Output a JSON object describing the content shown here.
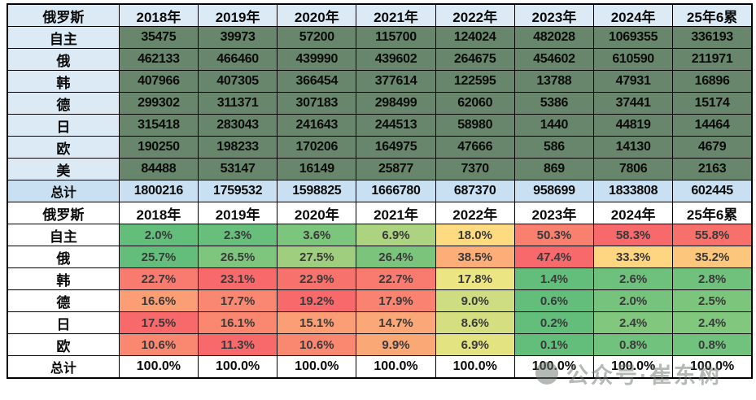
{
  "chart_data": [
    {
      "type": "table",
      "name": "russia-auto-market-sales-volume",
      "corner_label": "俄罗斯",
      "columns": [
        "2018年",
        "2019年",
        "2020年",
        "2021年",
        "2022年",
        "2023年",
        "2024年",
        "25年6累"
      ],
      "rows": [
        {
          "label": "自主",
          "values": [
            35475,
            39973,
            57200,
            115700,
            124024,
            482028,
            1069355,
            336193
          ]
        },
        {
          "label": "俄",
          "values": [
            462133,
            466460,
            439990,
            439602,
            264675,
            454602,
            610590,
            211971
          ]
        },
        {
          "label": "韩",
          "values": [
            407966,
            407305,
            366454,
            377614,
            122595,
            13788,
            47931,
            16896
          ]
        },
        {
          "label": "德",
          "values": [
            299302,
            311371,
            307183,
            298499,
            62060,
            5386,
            37441,
            15174
          ]
        },
        {
          "label": "日",
          "values": [
            315418,
            283043,
            241643,
            244513,
            58980,
            1440,
            44819,
            14464
          ]
        },
        {
          "label": "欧",
          "values": [
            190250,
            198233,
            170206,
            164975,
            47666,
            586,
            14130,
            4679
          ]
        },
        {
          "label": "美",
          "values": [
            84488,
            53147,
            16149,
            25877,
            7370,
            869,
            7806,
            2163
          ]
        }
      ],
      "total_row": {
        "label": "总计",
        "values": [
          1800216,
          1759532,
          1598825,
          1666780,
          687370,
          958699,
          1833808,
          602445
        ]
      }
    },
    {
      "type": "table",
      "name": "russia-auto-market-share-heatmap",
      "corner_label": "俄罗斯",
      "columns": [
        "2018年",
        "2019年",
        "2020年",
        "2021年",
        "2022年",
        "2023年",
        "2024年",
        "25年6累"
      ],
      "rows": [
        {
          "label": "自主",
          "cells": [
            {
              "v": "2.0%",
              "bg": "#63BE7B"
            },
            {
              "v": "2.3%",
              "bg": "#67BF7B"
            },
            {
              "v": "3.6%",
              "bg": "#7BC57C"
            },
            {
              "v": "6.9%",
              "bg": "#ACD37F"
            },
            {
              "v": "18.0%",
              "bg": "#FEDB81"
            },
            {
              "v": "50.3%",
              "bg": "#F9806F"
            },
            {
              "v": "58.3%",
              "bg": "#F8696B"
            },
            {
              "v": "55.8%",
              "bg": "#F8706C"
            }
          ]
        },
        {
          "label": "俄",
          "cells": [
            {
              "v": "25.7%",
              "bg": "#63BE7B"
            },
            {
              "v": "26.5%",
              "bg": "#7EC67D"
            },
            {
              "v": "27.5%",
              "bg": "#9FCF7E"
            },
            {
              "v": "26.4%",
              "bg": "#7AC47C"
            },
            {
              "v": "38.5%",
              "bg": "#FCAD78"
            },
            {
              "v": "47.4%",
              "bg": "#F8696B"
            },
            {
              "v": "33.3%",
              "bg": "#FED580"
            },
            {
              "v": "35.2%",
              "bg": "#FDC67D"
            }
          ]
        },
        {
          "label": "韩",
          "cells": [
            {
              "v": "22.7%",
              "bg": "#F97B6F"
            },
            {
              "v": "23.1%",
              "bg": "#F8696B"
            },
            {
              "v": "22.9%",
              "bg": "#F8726D"
            },
            {
              "v": "22.7%",
              "bg": "#F97B6F"
            },
            {
              "v": "17.8%",
              "bg": "#EBE583"
            },
            {
              "v": "1.4%",
              "bg": "#63BE7B"
            },
            {
              "v": "2.6%",
              "bg": "#6DC17C"
            },
            {
              "v": "2.8%",
              "bg": "#6FC17C"
            }
          ]
        },
        {
          "label": "德",
          "cells": [
            {
              "v": "16.6%",
              "bg": "#FB9E75"
            },
            {
              "v": "17.7%",
              "bg": "#FA8771"
            },
            {
              "v": "19.2%",
              "bg": "#F8696B"
            },
            {
              "v": "17.9%",
              "bg": "#F98370"
            },
            {
              "v": "9.0%",
              "bg": "#CEDD81"
            },
            {
              "v": "0.6%",
              "bg": "#63BE7B"
            },
            {
              "v": "2.0%",
              "bg": "#75C37C"
            },
            {
              "v": "2.5%",
              "bg": "#7BC57C"
            }
          ]
        },
        {
          "label": "日",
          "cells": [
            {
              "v": "17.5%",
              "bg": "#F8696B"
            },
            {
              "v": "16.1%",
              "bg": "#FA8871"
            },
            {
              "v": "15.1%",
              "bg": "#FB9E75"
            },
            {
              "v": "14.7%",
              "bg": "#FBA777"
            },
            {
              "v": "8.6%",
              "bg": "#D5DF82"
            },
            {
              "v": "0.2%",
              "bg": "#63BE7B"
            },
            {
              "v": "2.4%",
              "bg": "#81C77D"
            },
            {
              "v": "2.4%",
              "bg": "#81C77D"
            }
          ]
        },
        {
          "label": "欧",
          "cells": [
            {
              "v": "10.6%",
              "bg": "#FA8871"
            },
            {
              "v": "11.3%",
              "bg": "#F8696B"
            },
            {
              "v": "10.6%",
              "bg": "#FA8871"
            },
            {
              "v": "9.9%",
              "bg": "#FBA877"
            },
            {
              "v": "6.9%",
              "bg": "#E3E382"
            },
            {
              "v": "0.1%",
              "bg": "#63BE7B"
            },
            {
              "v": "0.8%",
              "bg": "#70C27C"
            },
            {
              "v": "0.8%",
              "bg": "#70C27C"
            }
          ]
        }
      ],
      "total_row": {
        "label": "总计",
        "values": [
          "100.0%",
          "100.0%",
          "100.0%",
          "100.0%",
          "100.0%",
          "100.0%",
          "100.0%",
          "100.0%"
        ]
      },
      "color_scale": {
        "min_green": "#63BE7B",
        "mid_yellow": "#FFEB84",
        "max_red": "#F8696B"
      }
    }
  ],
  "watermark": {
    "text": "公众号·崔东树",
    "icon": "wechat-logo-icon",
    "color": "#6E766E"
  },
  "colors": {
    "header_bg": "#DCEAF6",
    "count_cell_bg": "#68866C",
    "total_row_bg": "#C9E0F2",
    "border": "#000000"
  }
}
